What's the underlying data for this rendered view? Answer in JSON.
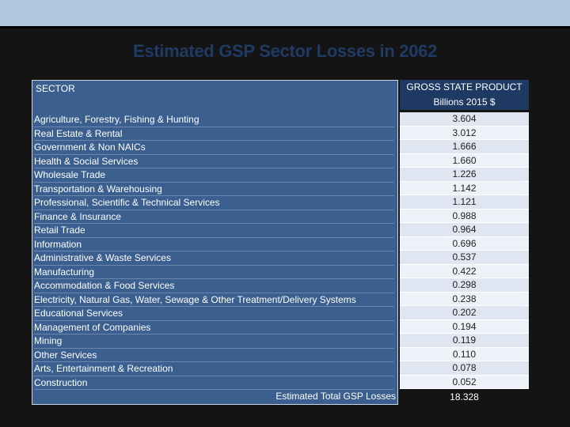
{
  "title": "Estimated GSP Sector Losses in 2062",
  "table": {
    "sector_header": "SECTOR",
    "value_header_line1": "GROSS STATE PRODUCT",
    "value_header_line2": "Billions 2015 $",
    "rows": [
      {
        "sector": "Agriculture, Forestry, Fishing & Hunting",
        "value": "3.604"
      },
      {
        "sector": "Real Estate & Rental",
        "value": "3.012"
      },
      {
        "sector": "Government & Non NAICs",
        "value": "1.666"
      },
      {
        "sector": "Health & Social Services",
        "value": "1.660"
      },
      {
        "sector": "Wholesale Trade",
        "value": "1.226"
      },
      {
        "sector": "Transportation & Warehousing",
        "value": "1.142"
      },
      {
        "sector": "Professional, Scientific & Technical Services",
        "value": "1.121"
      },
      {
        "sector": "Finance & Insurance",
        "value": "0.988"
      },
      {
        "sector": "Retail Trade",
        "value": "0.964"
      },
      {
        "sector": "Information",
        "value": "0.696"
      },
      {
        "sector": "Administrative & Waste Services",
        "value": "0.537"
      },
      {
        "sector": "Manufacturing",
        "value": "0.422"
      },
      {
        "sector": "Accommodation & Food Services",
        "value": "0.298"
      },
      {
        "sector": "Electricity, Natural Gas, Water, Sewage & Other Treatment/Delivery Systems",
        "value": "0.238"
      },
      {
        "sector": "Educational Services",
        "value": "0.202"
      },
      {
        "sector": "Management of Companies",
        "value": "0.194"
      },
      {
        "sector": "Mining",
        "value": "0.119"
      },
      {
        "sector": "Other Services",
        "value": "0.110"
      },
      {
        "sector": "Arts, Entertainment & Recreation",
        "value": "0.078"
      },
      {
        "sector": "Construction",
        "value": "0.052"
      }
    ],
    "total_label": "Estimated Total GSP Losses",
    "total_value": "18.328"
  }
}
